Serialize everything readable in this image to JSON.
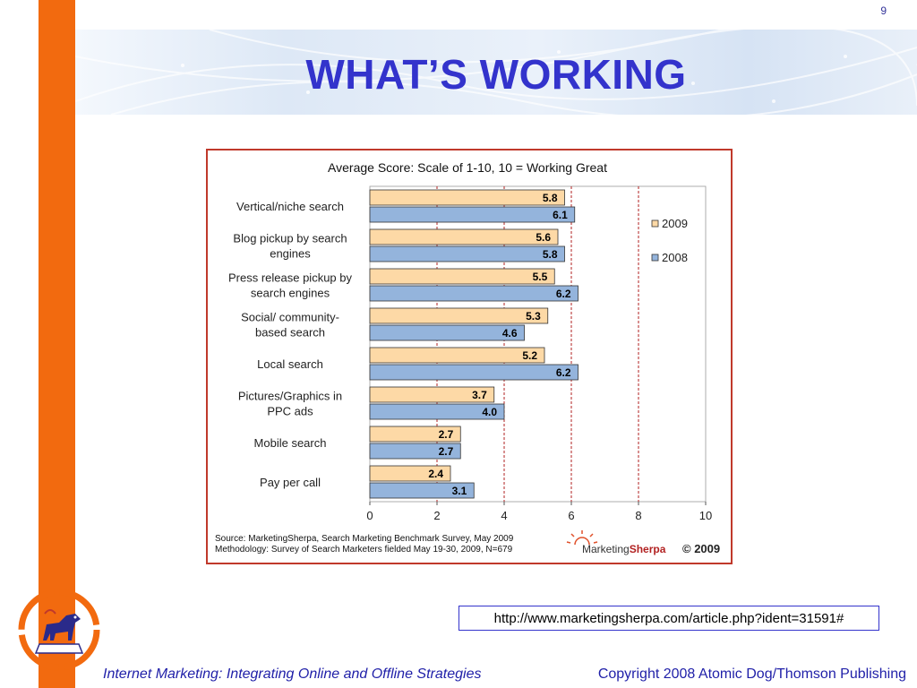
{
  "slide": {
    "page_number": "9",
    "title": "WHAT’S WORKING",
    "url": "http://www.marketingsherpa.com/article.php?ident=31591#",
    "footer_left": "Internet Marketing: Integrating Online and Offline Strategies",
    "footer_right": "Copyright 2008 Atomic Dog/Thomson Publishing"
  },
  "colors": {
    "accent_orange": "#f26a0f",
    "title_blue": "#3333cc",
    "series_2009": "#fdd9a6",
    "series_2008": "#94b4dc",
    "gridline_red": "#b22222"
  },
  "icons": {
    "logo": "atomic-dog-logo-icon",
    "marketingsherpa": "marketingsherpa-sun-icon"
  },
  "chart_data": {
    "type": "bar",
    "orientation": "horizontal",
    "title": "Average Score: Scale of 1-10, 10 = Working Great",
    "categories": [
      [
        "Vertical/niche search"
      ],
      [
        "Blog pickup by search",
        "engines"
      ],
      [
        "Press release pickup by",
        "search engines"
      ],
      [
        "Social/ community-",
        "based search"
      ],
      [
        "Local search"
      ],
      [
        "Pictures/Graphics in",
        "PPC ads"
      ],
      [
        "Mobile search"
      ],
      [
        "Pay per call"
      ]
    ],
    "series": [
      {
        "name": "2009",
        "color": "#fdd9a6",
        "values": [
          5.8,
          5.6,
          5.5,
          5.3,
          5.2,
          3.7,
          2.7,
          2.4
        ],
        "labels": [
          "5.8",
          "5.6",
          "5.5",
          "5.3",
          "5.2",
          "3.7",
          "2.7",
          "2.4"
        ]
      },
      {
        "name": "2008",
        "color": "#94b4dc",
        "values": [
          6.1,
          5.8,
          6.2,
          4.6,
          6.2,
          4.0,
          2.7,
          3.1
        ],
        "labels": [
          "6.1",
          "5.8",
          "6.2",
          "4.6",
          "6.2",
          "4.0",
          "2.7",
          "3.1"
        ]
      }
    ],
    "xlim": [
      0,
      10
    ],
    "xticks": [
      "0",
      "2",
      "4",
      "6",
      "8",
      "10"
    ],
    "grid": "vertical dashed",
    "legend": "right",
    "source_line1": "Source: MarketingSherpa, Search Marketing Benchmark Survey, May 2009",
    "source_line2": "Methodology: Survey of Search Marketers fielded May 19-30, 2009, N=679",
    "brand_light": "Marketing",
    "brand_bold": "Sherpa",
    "copyright": "© 2009"
  }
}
